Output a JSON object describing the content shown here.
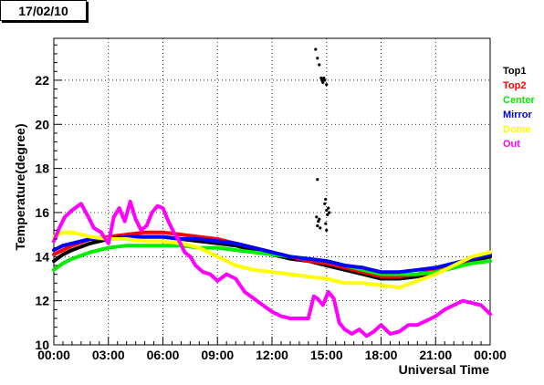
{
  "header": {
    "date_label": "17/02/10"
  },
  "chart_data": {
    "type": "line",
    "xlabel": "Universal Time",
    "ylabel": "Temperature(degree)",
    "xlim": [
      0,
      24
    ],
    "ylim": [
      10,
      23.9
    ],
    "x_ticks": [
      0,
      3,
      6,
      9,
      12,
      15,
      18,
      21,
      24
    ],
    "x_tick_labels": [
      "00:00",
      "03:00",
      "06:00",
      "09:00",
      "12:00",
      "15:00",
      "18:00",
      "21:00",
      "00:00"
    ],
    "y_ticks": [
      10,
      12,
      14,
      16,
      18,
      20,
      22
    ],
    "y_tick_labels": [
      "10",
      "12",
      "14",
      "16",
      "18",
      "20",
      "22"
    ],
    "grid": true,
    "legend_position": "right",
    "series": [
      {
        "name": "Top1",
        "color": "#000000",
        "x": [
          0,
          0.5,
          1,
          2,
          3,
          4,
          5,
          6,
          7,
          8,
          9,
          10,
          11,
          12,
          13,
          14,
          15,
          16,
          17,
          18,
          19,
          20,
          21,
          22,
          23,
          24
        ],
        "y": [
          13.8,
          14.1,
          14.3,
          14.6,
          14.8,
          14.9,
          14.9,
          14.9,
          14.8,
          14.7,
          14.6,
          14.5,
          14.3,
          14.1,
          13.9,
          13.8,
          13.6,
          13.4,
          13.2,
          13.0,
          13.0,
          13.1,
          13.3,
          13.5,
          13.8,
          14.0
        ]
      },
      {
        "name": "Top2",
        "color": "#ff0000",
        "x": [
          0,
          0.5,
          1,
          2,
          3,
          4,
          5,
          6,
          7,
          8,
          9,
          10,
          11,
          12,
          13,
          14,
          15,
          16,
          17,
          18,
          19,
          20,
          21,
          22,
          23,
          24
        ],
        "y": [
          14.1,
          14.3,
          14.5,
          14.8,
          14.9,
          15.0,
          15.1,
          15.1,
          15.0,
          14.9,
          14.8,
          14.6,
          14.4,
          14.2,
          14.0,
          13.8,
          13.7,
          13.5,
          13.3,
          13.1,
          13.1,
          13.2,
          13.4,
          13.6,
          13.9,
          14.1
        ]
      },
      {
        "name": "Center",
        "color": "#00ee00",
        "x": [
          0,
          0.5,
          1,
          2,
          3,
          4,
          5,
          6,
          7,
          8,
          9,
          10,
          11,
          12,
          13,
          14,
          15,
          16,
          17,
          18,
          19,
          20,
          21,
          22,
          23,
          24
        ],
        "y": [
          13.4,
          13.7,
          13.9,
          14.2,
          14.4,
          14.5,
          14.5,
          14.5,
          14.5,
          14.4,
          14.4,
          14.3,
          14.2,
          14.1,
          14.0,
          13.9,
          13.8,
          13.6,
          13.4,
          13.2,
          13.2,
          13.2,
          13.3,
          13.5,
          13.7,
          13.8
        ]
      },
      {
        "name": "Mirror",
        "color": "#0000ff",
        "x": [
          0,
          0.5,
          1,
          2,
          3,
          4,
          5,
          6,
          7,
          8,
          9,
          10,
          11,
          12,
          13,
          14,
          15,
          16,
          17,
          18,
          19,
          20,
          21,
          22,
          23,
          24
        ],
        "y": [
          14.3,
          14.5,
          14.6,
          14.8,
          14.8,
          14.9,
          14.9,
          14.9,
          14.8,
          14.8,
          14.7,
          14.6,
          14.4,
          14.2,
          14.0,
          13.9,
          13.8,
          13.6,
          13.5,
          13.3,
          13.3,
          13.4,
          13.5,
          13.7,
          13.9,
          14.1
        ]
      },
      {
        "name": "Dome",
        "color": "#ffff00",
        "x": [
          0,
          0.5,
          1,
          2,
          3,
          4,
          5,
          6,
          7,
          7.5,
          8,
          9,
          10,
          11,
          12,
          13,
          14,
          15,
          16,
          17,
          18,
          19,
          20,
          21,
          22,
          23,
          24
        ],
        "y": [
          14.9,
          15.1,
          15.1,
          14.9,
          14.8,
          14.8,
          14.7,
          14.7,
          14.6,
          14.5,
          14.4,
          14.0,
          13.6,
          13.4,
          13.3,
          13.2,
          13.1,
          13.0,
          12.8,
          12.8,
          12.7,
          12.6,
          12.9,
          13.2,
          13.6,
          14.0,
          14.2
        ]
      },
      {
        "name": "Out",
        "color": "#ff00ff",
        "x": [
          0,
          0.3,
          0.6,
          1.0,
          1.5,
          1.9,
          2.2,
          2.6,
          3.0,
          3.3,
          3.6,
          3.9,
          4.2,
          4.5,
          4.8,
          5.1,
          5.4,
          5.7,
          6.0,
          6.3,
          6.6,
          6.9,
          7.2,
          7.5,
          7.8,
          8.2,
          8.6,
          9.0,
          9.5,
          10.0,
          10.5,
          11.0,
          11.5,
          12.0,
          12.5,
          13.0,
          13.5,
          14.0,
          14.3,
          14.5,
          14.8,
          15.1,
          15.4,
          15.7,
          16.0,
          16.4,
          16.8,
          17.2,
          17.6,
          18.0,
          18.5,
          19.0,
          19.5,
          20.0,
          20.5,
          21.0,
          21.5,
          22.0,
          22.5,
          23.0,
          23.5,
          24.0
        ],
        "y": [
          14.7,
          15.3,
          15.8,
          16.1,
          16.4,
          15.8,
          15.3,
          15.1,
          14.6,
          15.8,
          16.2,
          15.6,
          16.5,
          15.7,
          15.2,
          15.4,
          16.0,
          16.3,
          16.2,
          15.6,
          15.1,
          14.7,
          14.2,
          14.0,
          13.6,
          13.3,
          13.2,
          12.9,
          13.2,
          13.0,
          12.4,
          12.1,
          11.8,
          11.5,
          11.3,
          11.2,
          11.2,
          11.2,
          12.2,
          12.1,
          11.8,
          12.4,
          12.1,
          11.0,
          10.7,
          10.5,
          10.7,
          10.4,
          10.6,
          10.9,
          10.5,
          10.6,
          10.9,
          10.9,
          11.1,
          11.3,
          11.6,
          11.8,
          12.0,
          11.9,
          11.8,
          11.4
        ]
      }
    ],
    "scatter_points": {
      "series": "Top1",
      "x": [
        14.4,
        14.5,
        14.6,
        14.7,
        14.75,
        14.8,
        14.85,
        14.9,
        15.0,
        14.5,
        14.45,
        14.55,
        14.6,
        14.5,
        14.65,
        14.9,
        14.95,
        15.0,
        15.05,
        15.1,
        15.15,
        14.95,
        15.0
      ],
      "y": [
        23.4,
        23.0,
        22.7,
        22.1,
        22.0,
        21.9,
        22.1,
        22.0,
        21.8,
        17.5,
        15.8,
        15.6,
        15.7,
        15.4,
        15.3,
        16.4,
        16.6,
        16.1,
        15.9,
        16.2,
        16.0,
        15.5,
        15.2
      ]
    }
  }
}
